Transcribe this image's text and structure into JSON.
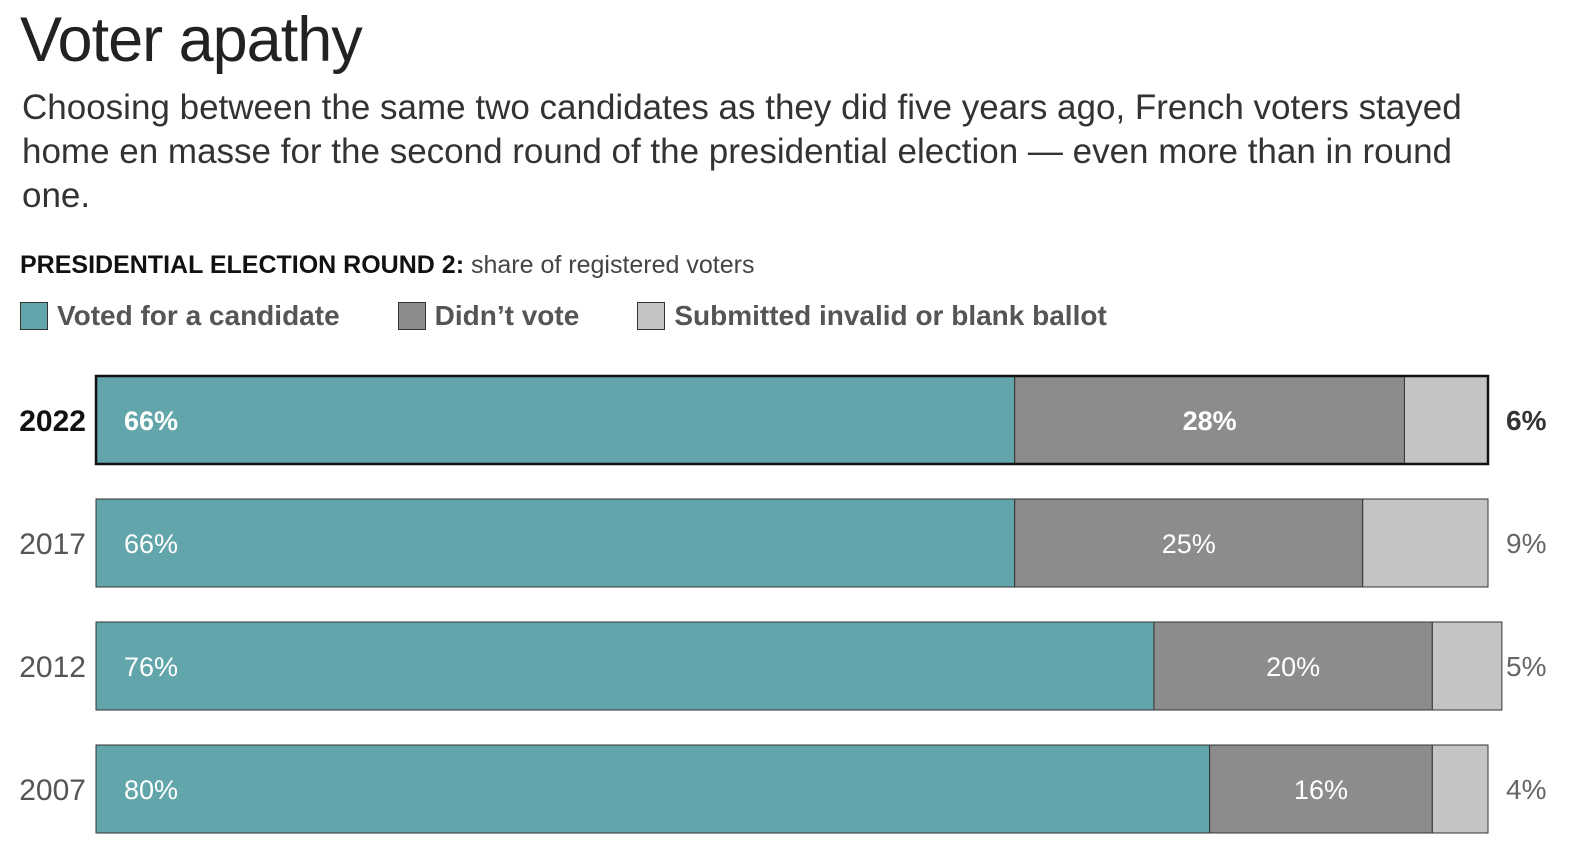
{
  "title": "Voter apathy",
  "subtitle": "Choosing between the same two candidates as they did five years ago, French voters stayed home en masse for the second round of the presidential election — even more than in round one.",
  "chart_header": {
    "bold": "PRESIDENTIAL ELECTION ROUND 2:",
    "note": "share of registered voters"
  },
  "colors": {
    "voted": "#62a6ab",
    "didnt_vote": "#8c8c8c",
    "invalid": "#c4c4c4",
    "border": "#333333",
    "highlight_border": "#111111"
  },
  "legend": [
    {
      "label": "Voted for a candidate",
      "color": "#62a6ab"
    },
    {
      "label": "Didn’t vote",
      "color": "#8c8c8c"
    },
    {
      "label": "Submitted invalid or blank ballot",
      "color": "#c4c4c4"
    }
  ],
  "chart_data": {
    "type": "bar",
    "orientation": "horizontal",
    "stacked": true,
    "title": "Voter apathy",
    "subtitle": "PRESIDENTIAL ELECTION ROUND 2: share of registered voters",
    "xlim": [
      0,
      100
    ],
    "grid": false,
    "legend_position": "top-left",
    "categories": [
      "2022",
      "2017",
      "2012",
      "2007"
    ],
    "highlighted_category": "2022",
    "series": [
      {
        "name": "Voted for a candidate",
        "values": [
          66,
          66,
          76,
          80
        ],
        "labels": [
          "66%",
          "66%",
          "76%",
          "80%"
        ]
      },
      {
        "name": "Didn’t vote",
        "values": [
          28,
          25,
          20,
          16
        ],
        "labels": [
          "28%",
          "25%",
          "20%",
          "16%"
        ]
      },
      {
        "name": "Submitted invalid or blank ballot",
        "values": [
          6,
          9,
          5,
          4
        ],
        "labels": [
          "6%",
          "9%",
          "5%",
          "4%"
        ]
      }
    ]
  }
}
